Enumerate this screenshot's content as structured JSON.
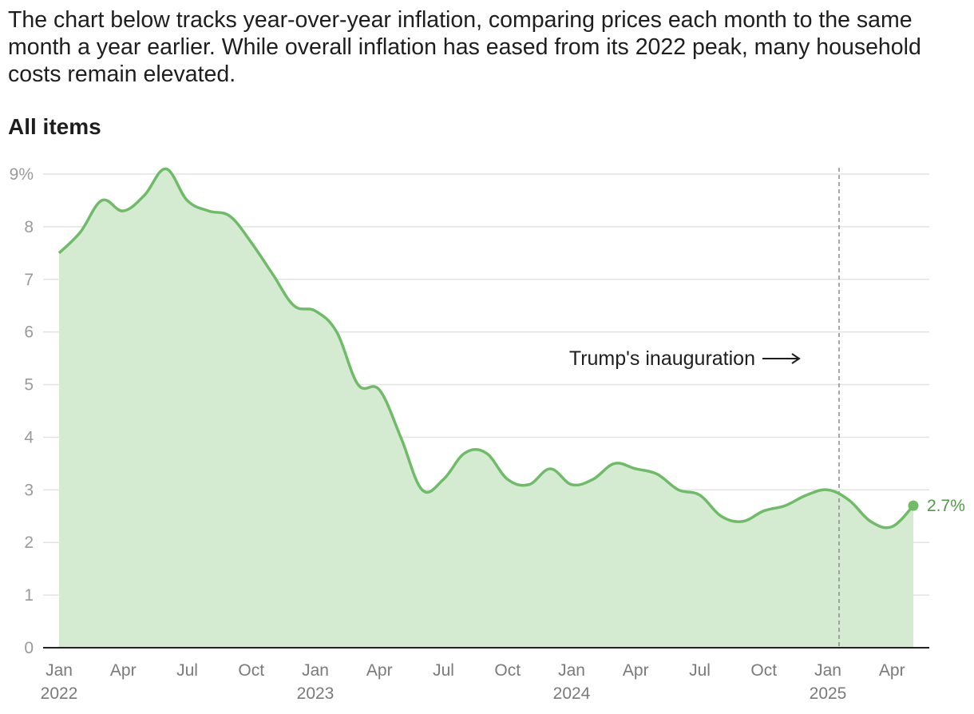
{
  "intro_text": "The chart below tracks year-over-year inflation, comparing prices each month to the same month a year earlier. While overall inflation has eased from its 2022 peak, many household costs remain elevated.",
  "chart_data": {
    "type": "area",
    "title": "All items",
    "xlabel": "",
    "ylabel": "",
    "unit": "%",
    "ylim": [
      0,
      9
    ],
    "yticks": [
      0,
      1,
      2,
      3,
      4,
      5,
      6,
      7,
      8,
      9
    ],
    "ytick_labels": [
      "0",
      "1",
      "2",
      "3",
      "4",
      "5",
      "6",
      "7",
      "8",
      "9%"
    ],
    "x_start": "2022-01",
    "x_end": "2025-05",
    "x_ticks": [
      {
        "month": "2022-01",
        "label": "Jan",
        "year": "2022"
      },
      {
        "month": "2022-04",
        "label": "Apr",
        "year": ""
      },
      {
        "month": "2022-07",
        "label": "Jul",
        "year": ""
      },
      {
        "month": "2022-10",
        "label": "Oct",
        "year": ""
      },
      {
        "month": "2023-01",
        "label": "Jan",
        "year": "2023"
      },
      {
        "month": "2023-04",
        "label": "Apr",
        "year": ""
      },
      {
        "month": "2023-07",
        "label": "Jul",
        "year": ""
      },
      {
        "month": "2023-10",
        "label": "Oct",
        "year": ""
      },
      {
        "month": "2024-01",
        "label": "Jan",
        "year": "2024"
      },
      {
        "month": "2024-04",
        "label": "Apr",
        "year": ""
      },
      {
        "month": "2024-07",
        "label": "Jul",
        "year": ""
      },
      {
        "month": "2024-10",
        "label": "Oct",
        "year": ""
      },
      {
        "month": "2025-01",
        "label": "Jan",
        "year": "2025"
      },
      {
        "month": "2025-04",
        "label": "Apr",
        "year": ""
      }
    ],
    "series": [
      {
        "months": [
          "2022-01",
          "2022-02",
          "2022-03",
          "2022-04",
          "2022-05",
          "2022-06",
          "2022-07",
          "2022-08",
          "2022-09",
          "2022-10",
          "2022-11",
          "2022-12",
          "2023-01",
          "2023-02",
          "2023-03",
          "2023-04",
          "2023-05",
          "2023-06",
          "2023-07",
          "2023-08",
          "2023-09",
          "2023-10",
          "2023-11",
          "2023-12",
          "2024-01",
          "2024-02",
          "2024-03",
          "2024-04",
          "2024-05",
          "2024-06",
          "2024-07",
          "2024-08",
          "2024-09",
          "2024-10",
          "2024-11",
          "2024-12",
          "2025-01",
          "2025-02",
          "2025-03",
          "2025-04",
          "2025-05"
        ],
        "values": [
          7.5,
          7.9,
          8.5,
          8.3,
          8.6,
          9.1,
          8.5,
          8.3,
          8.2,
          7.7,
          7.1,
          6.5,
          6.4,
          6.0,
          5.0,
          4.9,
          4.0,
          3.0,
          3.2,
          3.7,
          3.7,
          3.2,
          3.1,
          3.4,
          3.1,
          3.2,
          3.5,
          3.4,
          3.3,
          3.0,
          2.9,
          2.5,
          2.4,
          2.6,
          2.7,
          2.9,
          3.0,
          2.8,
          2.4,
          2.3,
          2.7
        ],
        "color": "#6fbb68",
        "fill": "#d4ebd2"
      }
    ],
    "end_label": "2.7%",
    "annotation": {
      "text": "Trump's inauguration",
      "month": "2025-01"
    },
    "grid": true
  }
}
